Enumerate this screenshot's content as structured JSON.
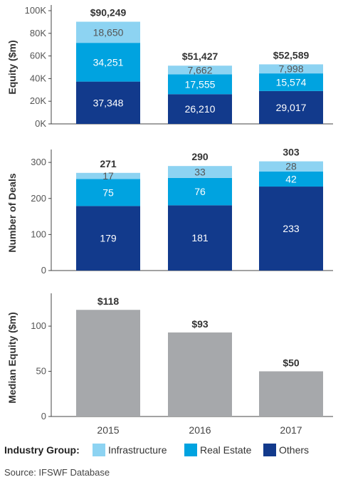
{
  "chart_data": [
    {
      "type": "bar",
      "stacked": true,
      "categories": [
        "2015",
        "2016",
        "2017"
      ],
      "ylabel": "Equity ($m)",
      "ylim": [
        0,
        100000
      ],
      "yticks": [
        "0K",
        "20K",
        "40K",
        "60K",
        "80K",
        "100K"
      ],
      "series": [
        {
          "name": "Others",
          "values": [
            37348,
            26210,
            29017
          ],
          "labels": [
            "37,348",
            "26,210",
            "29,017"
          ]
        },
        {
          "name": "Real Estate",
          "values": [
            34251,
            17555,
            15574
          ],
          "labels": [
            "34,251",
            "17,555",
            "15,574"
          ]
        },
        {
          "name": "Infrastructure",
          "values": [
            18650,
            7662,
            7998
          ],
          "labels": [
            "18,650",
            "7,662",
            "7,998"
          ]
        }
      ],
      "totals": [
        "$90,249",
        "$51,427",
        "$52,589"
      ]
    },
    {
      "type": "bar",
      "stacked": true,
      "categories": [
        "2015",
        "2016",
        "2017"
      ],
      "ylabel": "Number of Deals",
      "ylim": [
        0,
        320
      ],
      "yticks": [
        "0",
        "100",
        "200",
        "300"
      ],
      "series": [
        {
          "name": "Others",
          "values": [
            179,
            181,
            233
          ],
          "labels": [
            "179",
            "181",
            "233"
          ]
        },
        {
          "name": "Real Estate",
          "values": [
            75,
            76,
            42
          ],
          "labels": [
            "75",
            "76",
            "42"
          ]
        },
        {
          "name": "Infrastructure",
          "values": [
            17,
            33,
            28
          ],
          "labels": [
            "17",
            "33",
            "28"
          ]
        }
      ],
      "totals": [
        "271",
        "290",
        "303"
      ]
    },
    {
      "type": "bar",
      "categories": [
        "2015",
        "2016",
        "2017"
      ],
      "ylabel": "Median Equity ($m)",
      "ylim": [
        0,
        130
      ],
      "yticks": [
        "0",
        "50",
        "100"
      ],
      "values": [
        118,
        93,
        50
      ],
      "labels": [
        "$118",
        "$93",
        "$50"
      ]
    }
  ],
  "colors": {
    "infrastructure": "#8dd3f2",
    "real_estate": "#00a3e0",
    "others": "#123a8c",
    "median": "#a6a8ab",
    "axis": "#444444"
  },
  "legend": {
    "title": "Industry Group:",
    "items": [
      {
        "label": "Infrastructure",
        "color": "#8dd3f2"
      },
      {
        "label": "Real Estate",
        "color": "#00a3e0"
      },
      {
        "label": "Others",
        "color": "#123a8c"
      }
    ]
  },
  "source": "Source: IFSWF Database"
}
